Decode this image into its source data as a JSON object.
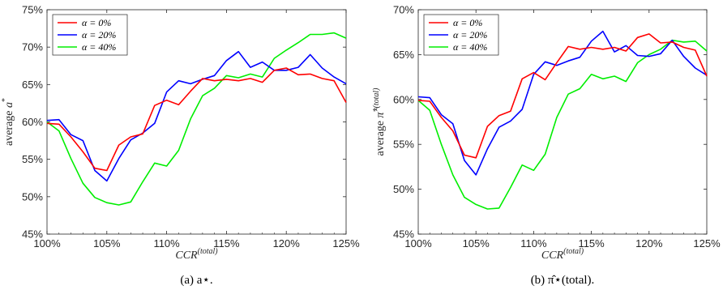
{
  "chart_data": [
    {
      "type": "line",
      "caption": "(a) a⋆.",
      "xlabel": "CCR(total)",
      "ylabel": "average a*",
      "xlim": [
        100,
        125
      ],
      "ylim": [
        45,
        75
      ],
      "xticks": [
        "100%",
        "105%",
        "110%",
        "115%",
        "120%",
        "125%"
      ],
      "yticks": [
        "45%",
        "50%",
        "55%",
        "60%",
        "65%",
        "70%",
        "75%"
      ],
      "x": [
        100,
        101,
        102,
        103,
        104,
        105,
        106,
        107,
        108,
        109,
        110,
        111,
        112,
        113,
        114,
        115,
        116,
        117,
        118,
        119,
        120,
        121,
        122,
        123,
        124,
        125
      ],
      "legend_position": "top-left",
      "series": [
        {
          "name": "α = 0%",
          "color": "#ff0000",
          "values": [
            59.8,
            59.7,
            58.0,
            56.0,
            53.8,
            53.5,
            56.9,
            58.0,
            58.4,
            62.2,
            62.9,
            62.3,
            64.1,
            65.8,
            65.5,
            65.7,
            65.5,
            65.8,
            65.3,
            66.9,
            67.2,
            66.3,
            66.4,
            65.8,
            65.5,
            62.6
          ]
        },
        {
          "name": "α = 20%",
          "color": "#0000ff",
          "values": [
            60.2,
            60.3,
            58.3,
            57.5,
            53.5,
            52.1,
            55.1,
            57.6,
            58.5,
            59.8,
            64.0,
            65.5,
            65.1,
            65.7,
            66.2,
            68.2,
            69.4,
            67.3,
            68.0,
            66.9,
            66.9,
            67.3,
            69.0,
            67.2,
            66.0,
            65.1
          ]
        },
        {
          "name": "α = 40%",
          "color": "#00ee00",
          "values": [
            60.0,
            58.8,
            55.1,
            51.8,
            49.9,
            49.2,
            48.9,
            49.3,
            52.0,
            54.5,
            54.1,
            56.2,
            60.4,
            63.5,
            64.5,
            66.2,
            65.9,
            66.4,
            66.0,
            68.5,
            69.6,
            70.6,
            71.7,
            71.7,
            71.9,
            71.2
          ]
        }
      ]
    },
    {
      "type": "line",
      "caption": "(b) π̂⋆(total).",
      "xlabel": "CCR(total)",
      "ylabel": "average π̂*(total)",
      "xlim": [
        100,
        125
      ],
      "ylim": [
        45,
        70
      ],
      "xticks": [
        "100%",
        "105%",
        "110%",
        "115%",
        "120%",
        "125%"
      ],
      "yticks": [
        "45%",
        "50%",
        "55%",
        "60%",
        "65%",
        "70%"
      ],
      "x": [
        100,
        101,
        102,
        103,
        104,
        105,
        106,
        107,
        108,
        109,
        110,
        111,
        112,
        113,
        114,
        115,
        116,
        117,
        118,
        119,
        120,
        121,
        122,
        123,
        124,
        125
      ],
      "legend_position": "top-left",
      "series": [
        {
          "name": "α = 0%",
          "color": "#ff0000",
          "values": [
            59.9,
            59.8,
            58.0,
            56.5,
            53.8,
            53.5,
            57.0,
            58.2,
            58.7,
            62.3,
            63.0,
            62.2,
            64.1,
            65.9,
            65.6,
            65.8,
            65.6,
            65.8,
            65.4,
            66.9,
            67.3,
            66.3,
            66.4,
            65.8,
            65.5,
            62.6
          ]
        },
        {
          "name": "α = 20%",
          "color": "#0000ff",
          "values": [
            60.3,
            60.2,
            58.3,
            57.3,
            53.2,
            51.6,
            54.5,
            56.9,
            57.6,
            58.9,
            62.8,
            64.2,
            63.8,
            64.3,
            64.7,
            66.5,
            67.6,
            65.3,
            66.0,
            64.9,
            64.8,
            65.1,
            66.6,
            64.8,
            63.5,
            62.7
          ]
        },
        {
          "name": "α = 40%",
          "color": "#00ee00",
          "values": [
            59.9,
            58.8,
            55.0,
            51.6,
            49.1,
            48.3,
            47.8,
            47.9,
            50.2,
            52.7,
            52.1,
            53.9,
            58.0,
            60.6,
            61.2,
            62.8,
            62.3,
            62.6,
            62.0,
            64.1,
            65.0,
            65.6,
            66.6,
            66.4,
            66.5,
            65.4
          ]
        }
      ]
    }
  ]
}
